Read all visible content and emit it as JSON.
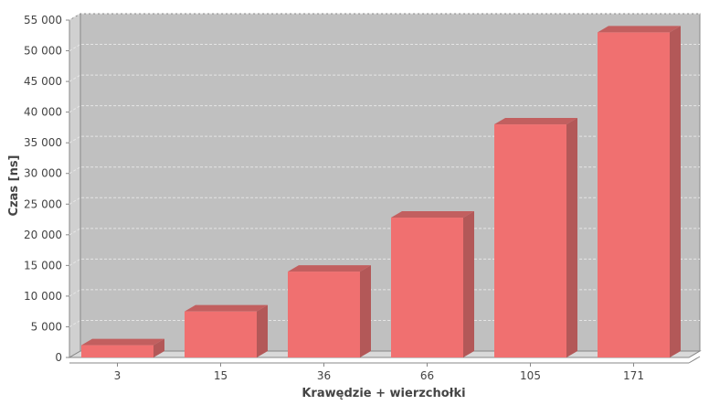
{
  "chart_data": {
    "type": "bar",
    "categories": [
      "3",
      "15",
      "36",
      "66",
      "105",
      "171"
    ],
    "values": [
      2000,
      7500,
      14000,
      22800,
      38000,
      53000
    ],
    "xlabel": "Krawędzie + wierzchołki",
    "ylabel": "Czas [ns]",
    "ylim": [
      0,
      55000
    ],
    "yticks": [
      0,
      5000,
      10000,
      15000,
      20000,
      25000,
      30000,
      35000,
      40000,
      45000,
      50000,
      55000
    ],
    "ytick_labels": [
      "0",
      "5 000",
      "10 000",
      "15 000",
      "20 000",
      "25 000",
      "30 000",
      "35 000",
      "40 000",
      "45 000",
      "50 000",
      "55 000"
    ],
    "grid": true,
    "legend": "none",
    "style": "3d",
    "colors": {
      "bar_front": "#f07070",
      "bar_side": "#b35858",
      "bar_top": "#c25f5f",
      "plot_back": "#c0c0c0",
      "plot_floor": "#d9d9d9",
      "grid": "#e6e6e6"
    }
  }
}
